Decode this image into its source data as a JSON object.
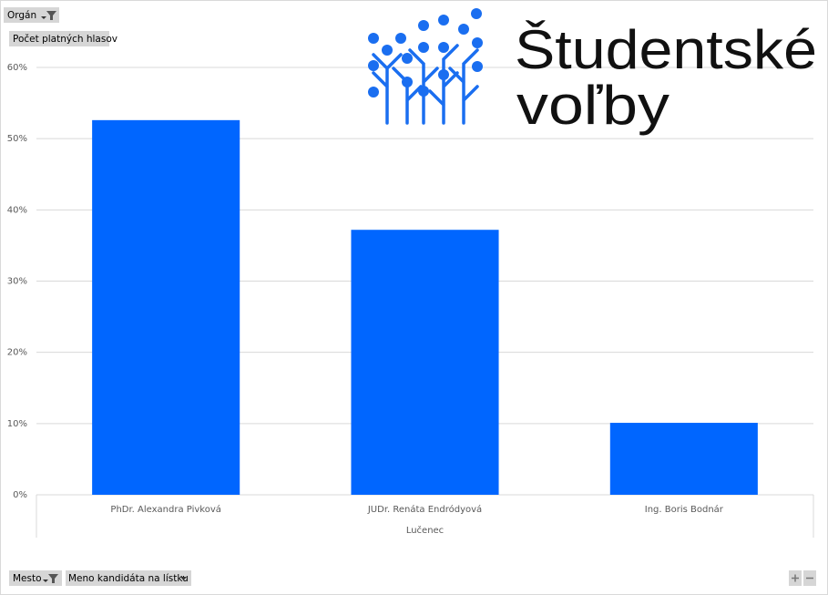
{
  "filters": {
    "top": "Orgán",
    "values_field": "Počet platných hlasov",
    "axis_fields": [
      "Mesto",
      "Meno kandidáta na lístku"
    ]
  },
  "logo": {
    "lines": [
      "Študentské",
      "voľby"
    ]
  },
  "chart_data": {
    "type": "bar",
    "categories": [
      "PhDr. Alexandra Pivková",
      "JUDr. Renáta Endródyová",
      "Ing. Boris Bodnár"
    ],
    "group_label": "Lučenec",
    "values": [
      52.6,
      37.2,
      10.1
    ],
    "color": "#0066ff",
    "ylim": [
      0,
      60
    ],
    "yticks": [
      {
        "value": 0,
        "label": "0%"
      },
      {
        "value": 10,
        "label": "10%"
      },
      {
        "value": 20,
        "label": "20%"
      },
      {
        "value": 30,
        "label": "30%"
      },
      {
        "value": 40,
        "label": "40%"
      },
      {
        "value": 50,
        "label": "50%"
      },
      {
        "value": 60,
        "label": "60%"
      }
    ],
    "grid": true
  }
}
